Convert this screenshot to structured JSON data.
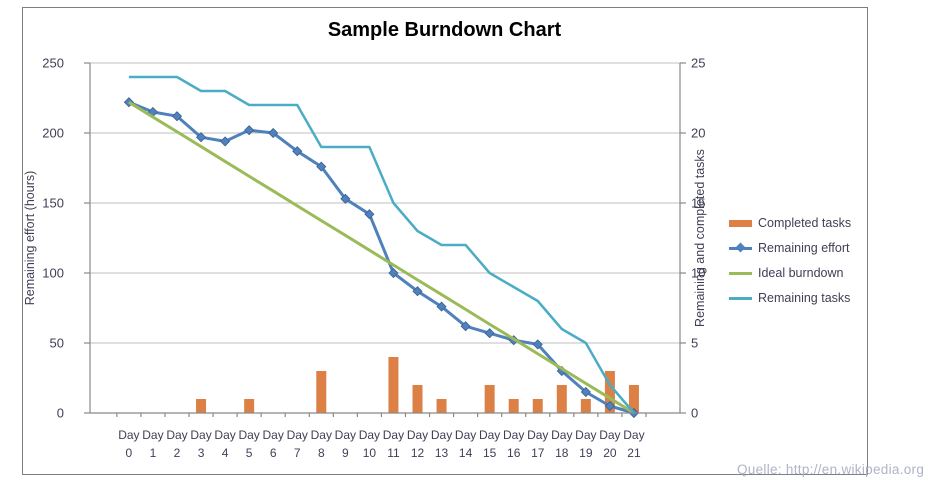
{
  "chart_data": {
    "type": "composite-bar-line",
    "title": "Sample Burndown Chart",
    "source": "Quelle: http://en.wikipedia.org",
    "x_prefix": "Day",
    "days": [
      0,
      1,
      2,
      3,
      4,
      5,
      6,
      7,
      8,
      9,
      10,
      11,
      12,
      13,
      14,
      15,
      16,
      17,
      18,
      19,
      20,
      21
    ],
    "left_axis": {
      "title": "Remaining effort (hours)",
      "ticks": [
        0,
        50,
        100,
        150,
        200,
        250
      ],
      "max": 250
    },
    "right_axis": {
      "title": "Remaining and completed tasks",
      "ticks": [
        0,
        5,
        10,
        15,
        20,
        25
      ],
      "max": 25
    },
    "grid": true,
    "legend_position": "right",
    "series": [
      {
        "name": "Completed tasks",
        "type": "bar",
        "axis": "right",
        "color": "#dd8046",
        "values": [
          0,
          0,
          0,
          1,
          0,
          1,
          0,
          0,
          3,
          0,
          0,
          4,
          2,
          1,
          0,
          2,
          1,
          1,
          2,
          1,
          3,
          2
        ]
      },
      {
        "name": "Remaining effort",
        "type": "line",
        "marker": "diamond",
        "axis": "left",
        "color": "#4f81bd",
        "values": [
          222,
          215,
          212,
          197,
          194,
          202,
          200,
          187,
          176,
          153,
          142,
          100,
          87,
          76,
          62,
          57,
          52,
          49,
          30,
          15,
          5,
          0
        ]
      },
      {
        "name": "Ideal burndown",
        "type": "line",
        "axis": "left",
        "color": "#9bbb59",
        "values": [
          222,
          211.4,
          200.9,
          190.3,
          179.7,
          169.1,
          158.6,
          148,
          137.4,
          126.9,
          116.3,
          105.7,
          95.1,
          84.6,
          74,
          63.4,
          52.9,
          42.3,
          31.7,
          21.1,
          10.6,
          0
        ]
      },
      {
        "name": "Remaining tasks",
        "type": "line",
        "axis": "right",
        "color": "#4bacc6",
        "values": [
          24,
          24,
          24,
          23,
          23,
          22,
          22,
          22,
          19,
          19,
          19,
          15,
          13,
          12,
          12,
          10,
          9,
          8,
          6,
          5,
          2,
          0
        ]
      }
    ],
    "colors": {
      "gridline": "#bfbfbf",
      "axis_line": "#898989",
      "tick_label": "#3f3f56",
      "source_text": "#afb3c8"
    }
  }
}
